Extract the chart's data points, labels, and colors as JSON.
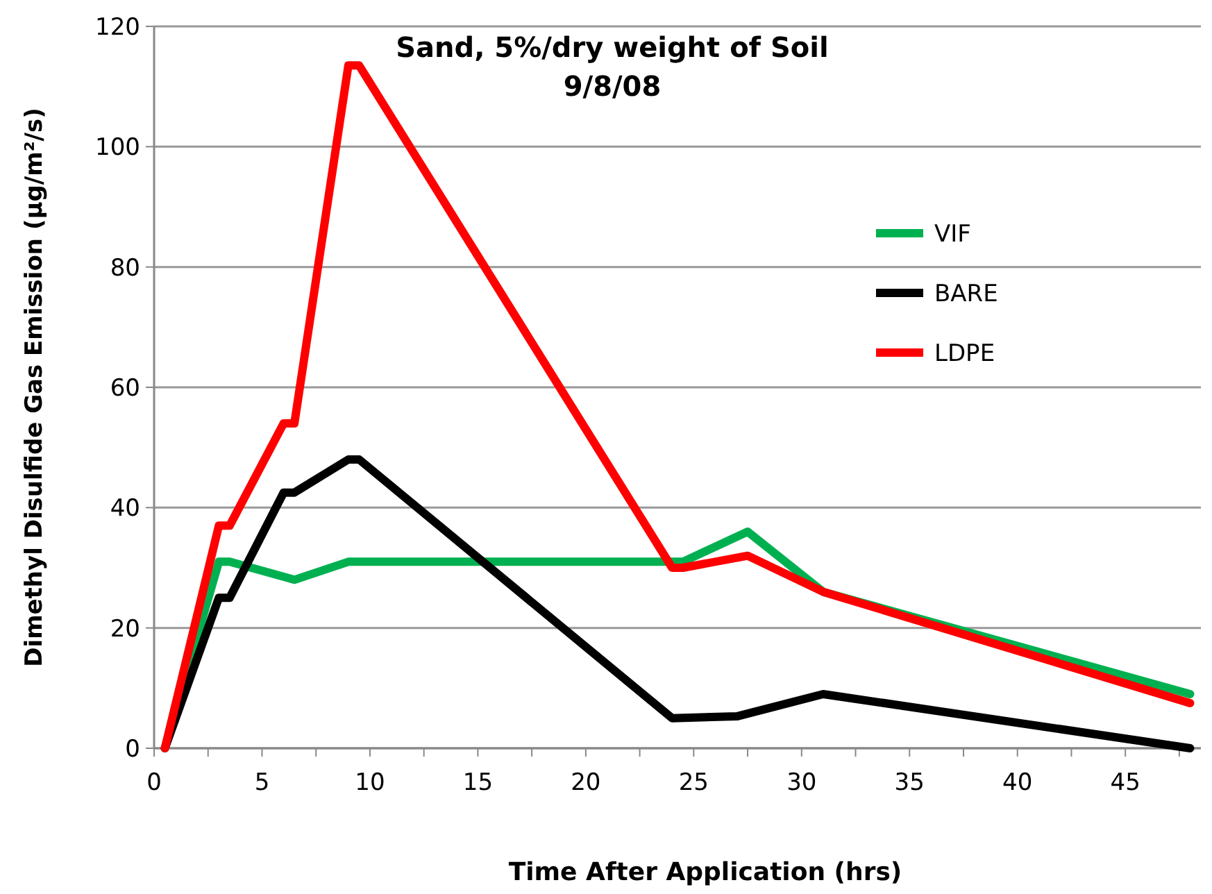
{
  "chart_data": {
    "type": "line",
    "title": "Sand, 5%/dry weight of Soil\n9/8/08",
    "xlabel": "Time After Application  (hrs)",
    "ylabel": "Dimethyl Disulfide Gas Emission  (µg/m²/s)",
    "xlim": [
      0,
      48.5
    ],
    "ylim": [
      0,
      120
    ],
    "xticks": [
      0,
      {
        "value": 2.5,
        "label": null
      },
      5,
      {
        "value": 7.5,
        "label": null
      },
      10,
      {
        "value": 12.5,
        "label": null
      },
      15,
      {
        "value": 17.5,
        "label": null
      },
      20,
      {
        "value": 22.5,
        "label": null
      },
      25,
      {
        "value": 27.5,
        "label": null
      },
      30,
      {
        "value": 32.5,
        "label": null
      },
      35,
      {
        "value": 37.5,
        "label": null
      },
      40,
      {
        "value": 42.5,
        "label": null
      },
      45,
      {
        "value": 47.5,
        "label": null
      }
    ],
    "yticks": [
      0,
      20,
      40,
      60,
      80,
      100,
      120
    ],
    "grid": "y",
    "legend": "right",
    "marker": "none",
    "line_style": "solid",
    "series": [
      {
        "name": "VIF",
        "color": "#00b050",
        "x": [
          0.5,
          3,
          3.5,
          6.5,
          9,
          24.5,
          27.5,
          31,
          48
        ],
        "values": [
          0,
          31,
          31,
          28,
          31,
          31,
          36,
          26,
          9
        ]
      },
      {
        "name": "BARE",
        "color": "#000000",
        "x": [
          0.5,
          3,
          3.5,
          6,
          6.5,
          9,
          9.5,
          24,
          27,
          31,
          48
        ],
        "values": [
          0,
          25,
          25,
          42.5,
          42.5,
          48,
          48,
          5,
          5.3,
          9,
          0
        ]
      },
      {
        "name": "LDPE",
        "color": "#ff0000",
        "x": [
          0.5,
          3,
          3.5,
          6,
          6.5,
          9,
          9.5,
          24,
          24.5,
          27.5,
          31,
          48
        ],
        "values": [
          0,
          37,
          37,
          54,
          54,
          113.5,
          113.5,
          30,
          30,
          32,
          26,
          7.5
        ]
      }
    ]
  }
}
